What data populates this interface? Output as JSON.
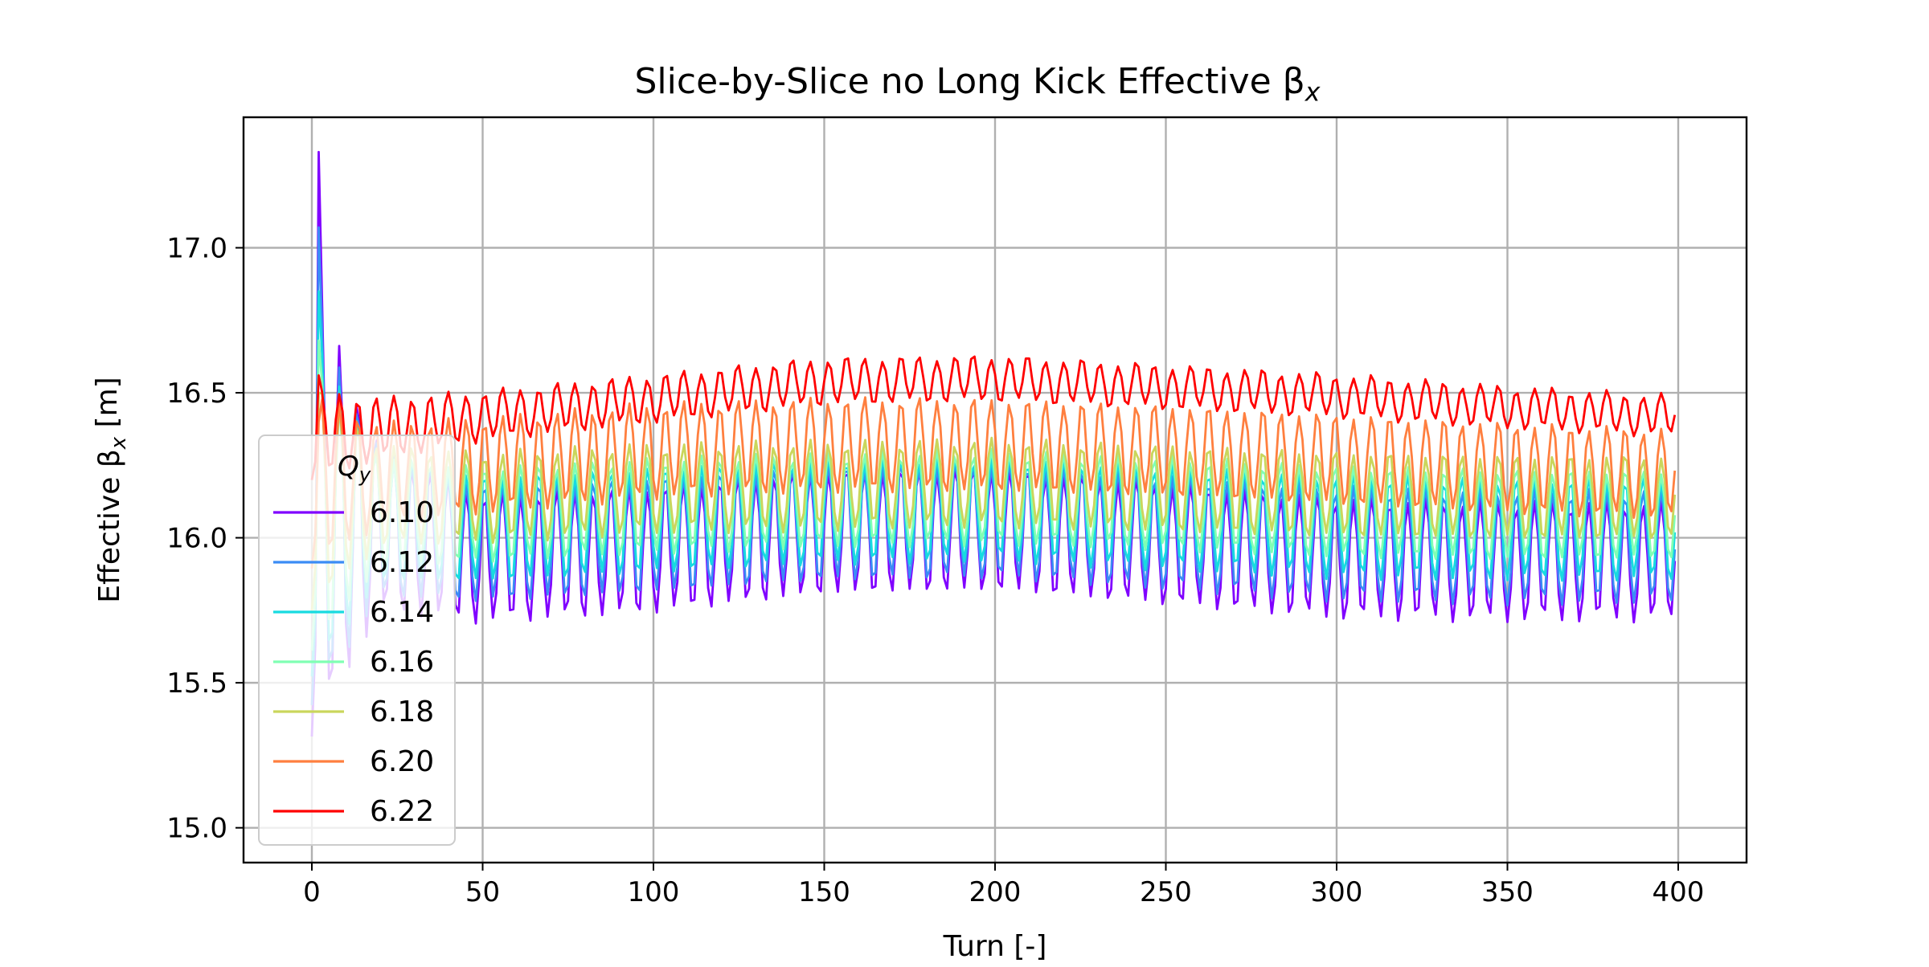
{
  "chart_data": {
    "type": "line",
    "title": "Slice-by-Slice no Long Kick Effective βx",
    "xlabel": "Turn [-]",
    "ylabel": "Effective βx [m]",
    "xlim": [
      -20,
      420
    ],
    "ylim": [
      14.88,
      17.45
    ],
    "xticks": [
      0,
      50,
      100,
      150,
      200,
      250,
      300,
      350,
      400
    ],
    "xtick_labels": [
      "0",
      "50",
      "100",
      "150",
      "200",
      "250",
      "300",
      "350",
      "400"
    ],
    "yticks": [
      15.0,
      15.5,
      16.0,
      16.5,
      17.0
    ],
    "ytick_labels": [
      "15.0",
      "15.5",
      "16.0",
      "16.5",
      "17.0"
    ],
    "grid": true,
    "legend": {
      "title": "Qy",
      "placement": "center-left"
    },
    "x": {
      "start": 0,
      "end": 399,
      "step": 1
    },
    "oscillation_period_turns": 5.3,
    "series": [
      {
        "name": "6.10",
        "color": "#8000ff",
        "center": [
          [
            0,
            16.1
          ],
          [
            50,
            15.93
          ],
          [
            100,
            15.96
          ],
          [
            150,
            16.02
          ],
          [
            200,
            16.03
          ],
          [
            250,
            15.98
          ],
          [
            300,
            15.93
          ],
          [
            350,
            15.92
          ],
          [
            399,
            15.92
          ]
        ],
        "amplitude": [
          [
            0,
            0.8
          ],
          [
            20,
            0.28
          ],
          [
            50,
            0.22
          ],
          [
            400,
            0.2
          ]
        ],
        "peak_at_start": 17.33
      },
      {
        "name": "6.12",
        "color": "#3b8cf5",
        "center": [
          [
            0,
            16.1
          ],
          [
            50,
            15.98
          ],
          [
            100,
            16.01
          ],
          [
            150,
            16.05
          ],
          [
            200,
            16.06
          ],
          [
            250,
            16.02
          ],
          [
            300,
            15.98
          ],
          [
            350,
            15.97
          ],
          [
            399,
            15.97
          ]
        ],
        "amplitude": [
          [
            0,
            0.7
          ],
          [
            20,
            0.25
          ],
          [
            50,
            0.2
          ],
          [
            400,
            0.19
          ]
        ],
        "peak_at_start": 17.07
      },
      {
        "name": "6.14",
        "color": "#17dbe0",
        "center": [
          [
            0,
            16.1
          ],
          [
            50,
            16.03
          ],
          [
            100,
            16.06
          ],
          [
            150,
            16.09
          ],
          [
            200,
            16.1
          ],
          [
            250,
            16.07
          ],
          [
            300,
            16.04
          ],
          [
            350,
            16.03
          ],
          [
            399,
            16.03
          ]
        ],
        "amplitude": [
          [
            0,
            0.6
          ],
          [
            20,
            0.22
          ],
          [
            50,
            0.18
          ],
          [
            400,
            0.17
          ]
        ],
        "peak_at_start": 16.85
      },
      {
        "name": "6.16",
        "color": "#80ffb4",
        "center": [
          [
            0,
            16.1
          ],
          [
            50,
            16.08
          ],
          [
            100,
            16.11
          ],
          [
            150,
            16.13
          ],
          [
            200,
            16.14
          ],
          [
            250,
            16.12
          ],
          [
            300,
            16.09
          ],
          [
            350,
            16.08
          ],
          [
            399,
            16.08
          ]
        ],
        "amplitude": [
          [
            0,
            0.5
          ],
          [
            20,
            0.19
          ],
          [
            50,
            0.16
          ],
          [
            400,
            0.15
          ]
        ],
        "peak_at_start": 16.68
      },
      {
        "name": "6.18",
        "color": "#cad65c",
        "center": [
          [
            0,
            16.15
          ],
          [
            50,
            16.14
          ],
          [
            100,
            16.17
          ],
          [
            150,
            16.18
          ],
          [
            200,
            16.19
          ],
          [
            250,
            16.17
          ],
          [
            300,
            16.15
          ],
          [
            350,
            16.14
          ],
          [
            399,
            16.14
          ]
        ],
        "amplitude": [
          [
            0,
            0.4
          ],
          [
            20,
            0.17
          ],
          [
            50,
            0.15
          ],
          [
            400,
            0.14
          ]
        ],
        "peak_at_start": 16.5
      },
      {
        "name": "6.20",
        "color": "#ff7f3f",
        "center": [
          [
            0,
            16.2
          ],
          [
            50,
            16.25
          ],
          [
            100,
            16.3
          ],
          [
            150,
            16.32
          ],
          [
            200,
            16.32
          ],
          [
            250,
            16.3
          ],
          [
            300,
            16.27
          ],
          [
            350,
            16.24
          ],
          [
            399,
            16.22
          ]
        ],
        "amplitude": [
          [
            0,
            0.3
          ],
          [
            20,
            0.17
          ],
          [
            50,
            0.16
          ],
          [
            400,
            0.15
          ]
        ],
        "peak_at_start": 16.4
      },
      {
        "name": "6.22",
        "color": "#ff0000",
        "center": [
          [
            0,
            16.35
          ],
          [
            50,
            16.42
          ],
          [
            100,
            16.48
          ],
          [
            150,
            16.54
          ],
          [
            200,
            16.55
          ],
          [
            250,
            16.52
          ],
          [
            300,
            16.49
          ],
          [
            350,
            16.45
          ],
          [
            399,
            16.42
          ]
        ],
        "amplitude": [
          [
            0,
            0.15
          ],
          [
            20,
            0.1
          ],
          [
            50,
            0.08
          ],
          [
            400,
            0.065
          ]
        ],
        "peak_at_start": 16.56
      }
    ]
  }
}
